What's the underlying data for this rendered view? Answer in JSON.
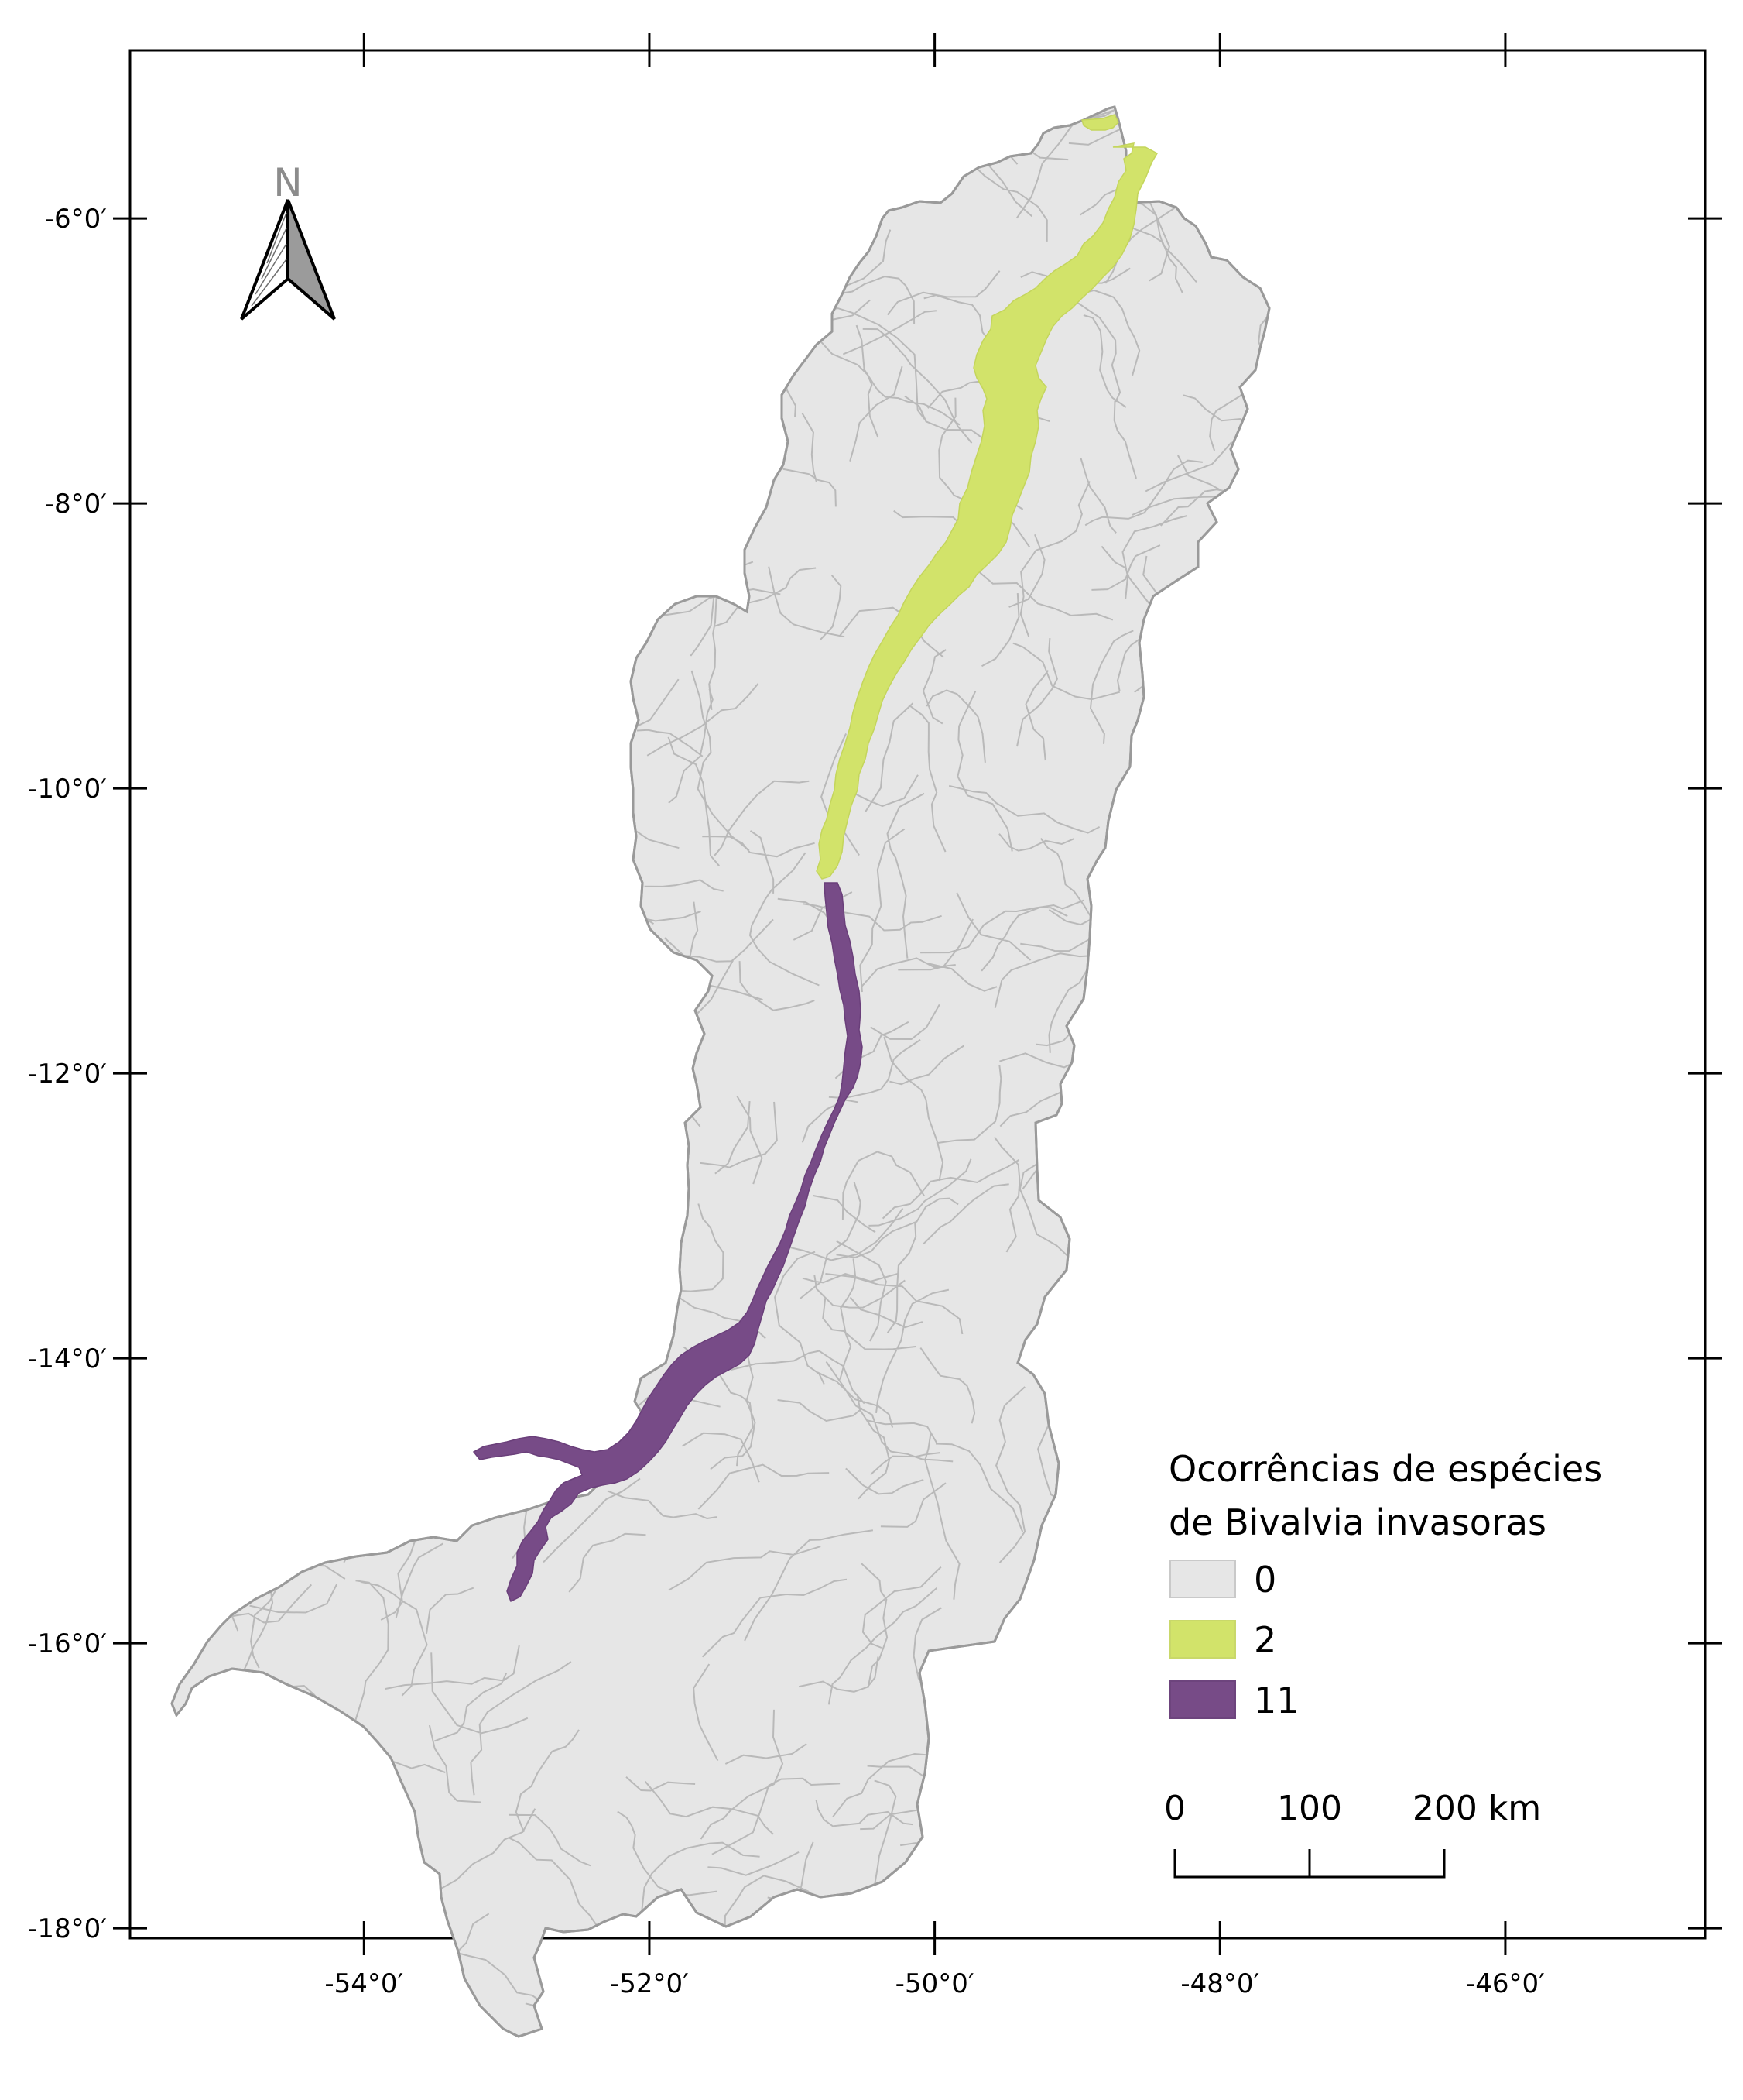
{
  "map": {
    "frame": {
      "lon_min": -55.64,
      "lon_max": -44.6,
      "lat_min": -18.07,
      "lat_max": -4.82
    },
    "x_ticks": [
      {
        "lon": -54,
        "label": "-54°0′"
      },
      {
        "lon": -52,
        "label": "-52°0′"
      },
      {
        "lon": -50,
        "label": "-50°0′"
      },
      {
        "lon": -48,
        "label": "-48°0′"
      },
      {
        "lon": -46,
        "label": "-46°0′"
      }
    ],
    "y_ticks": [
      {
        "lat": -6,
        "label": "-6°0′"
      },
      {
        "lat": -8,
        "label": "-8°0′"
      },
      {
        "lat": -10,
        "label": "-10°0′"
      },
      {
        "lat": -12,
        "label": "-12°0′"
      },
      {
        "lat": -14,
        "label": "-14°0′"
      },
      {
        "lat": -16,
        "label": "-16°0′"
      },
      {
        "lat": -18,
        "label": "-18°0′"
      }
    ],
    "north_arrow": {
      "letter": "N"
    },
    "legend": {
      "title_line1": "Ocorrências de espécies",
      "title_line2": "de Bivalvia invasoras",
      "items": [
        {
          "label": "0",
          "color": "#e6e6e6"
        },
        {
          "label": "2",
          "color": "#d2e36a"
        },
        {
          "label": "11",
          "color": "#774b87"
        }
      ]
    },
    "scale_bar": {
      "labels": [
        "0",
        "100",
        "200 km"
      ]
    },
    "colors": {
      "basin_fill": "#e6e6e6",
      "subbasin_line": "#b9b9b9",
      "basin_outline": "#9a9a9a",
      "class_2": "#d2e36a",
      "class_11": "#774b87",
      "frame": "#000000"
    }
  }
}
